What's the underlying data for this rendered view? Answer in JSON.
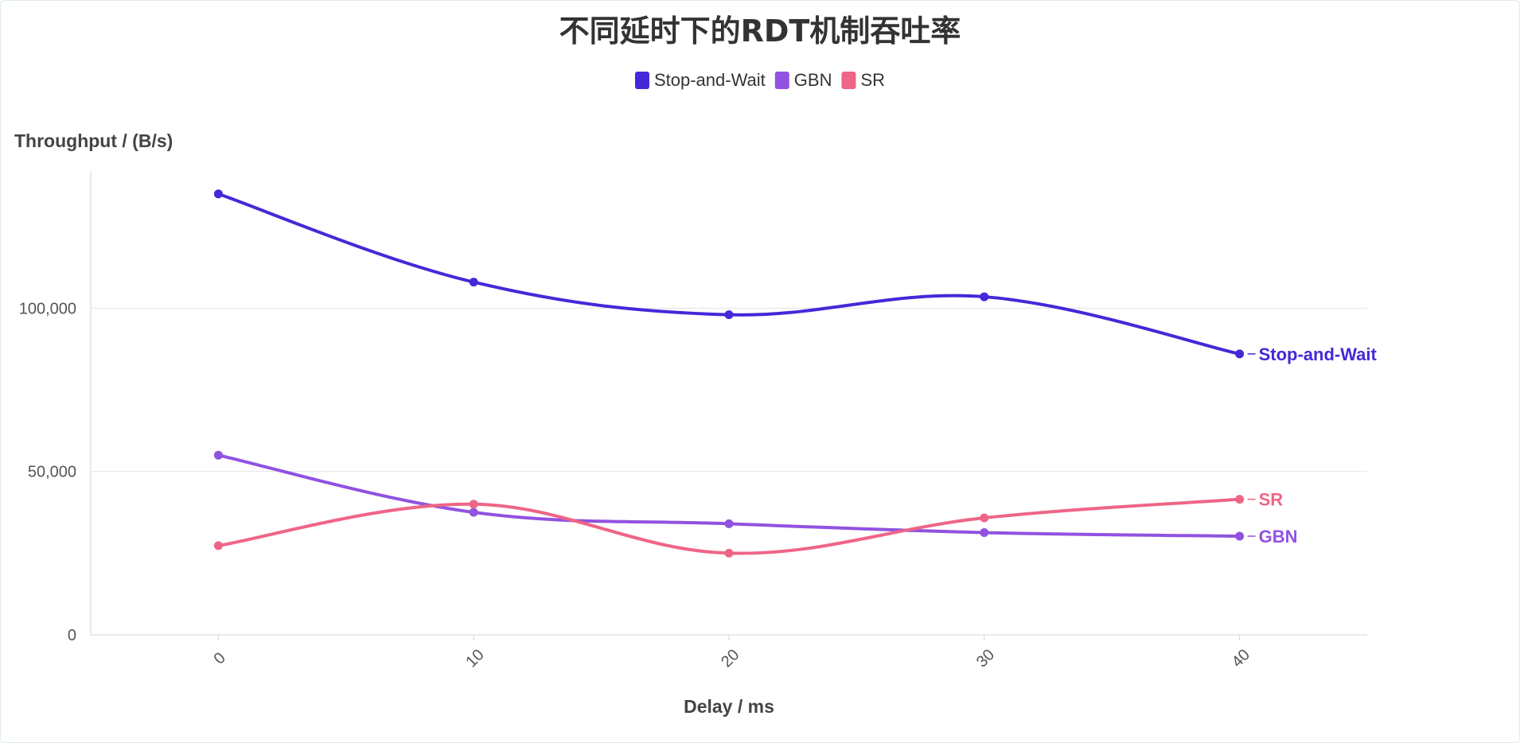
{
  "chart_data": {
    "type": "line",
    "title": "不同延时下的RDT机制吞吐率",
    "xlabel": "Delay / ms",
    "ylabel": "Throughput / (B/s)",
    "x": [
      0,
      10,
      20,
      30,
      40
    ],
    "xlim": [
      -5,
      45
    ],
    "ylim": [
      0,
      142000
    ],
    "yticks": [
      0,
      50000,
      100000
    ],
    "ytick_labels": [
      "0",
      "50,000",
      "100,000"
    ],
    "grid": "horizontal",
    "legend_position": "top-center",
    "series": [
      {
        "name": "Stop-and-Wait",
        "color": "#4329d8",
        "values": [
          135000,
          108000,
          98000,
          103500,
          86000
        ]
      },
      {
        "name": "GBN",
        "color": "#9152e0",
        "values": [
          55000,
          37500,
          34000,
          31300,
          30200
        ]
      },
      {
        "name": "SR",
        "color": "#ef6586",
        "values": [
          27300,
          40000,
          25000,
          35800,
          41500
        ]
      }
    ]
  }
}
